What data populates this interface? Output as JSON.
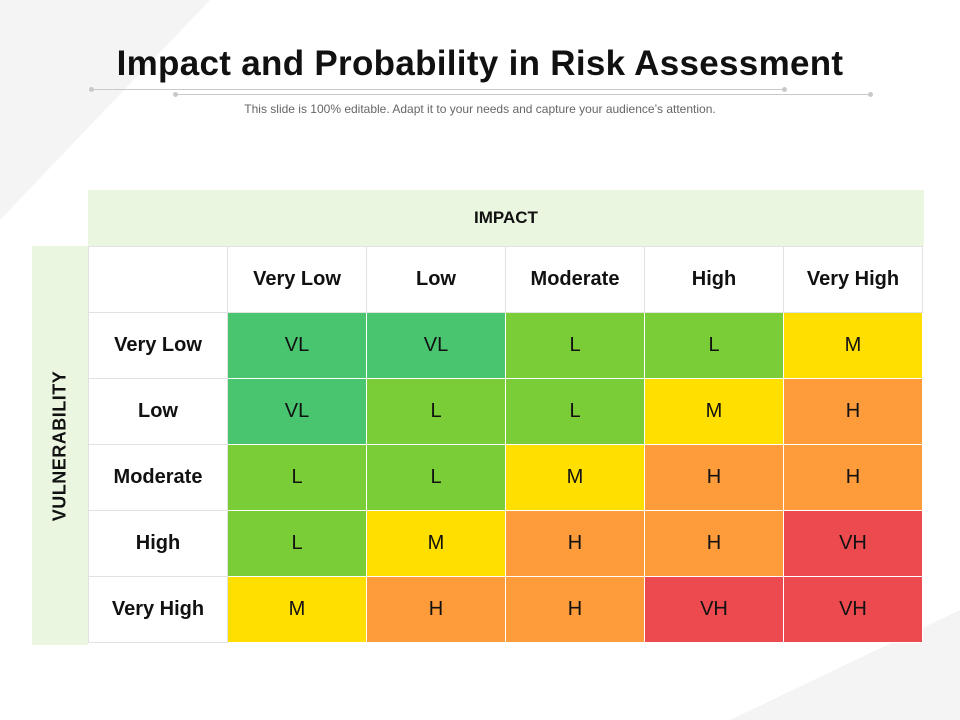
{
  "slide": {
    "title": "Impact and Probability in Risk Assessment",
    "subtitle": "This slide is 100% editable. Adapt it to your needs and capture your audience’s attention."
  },
  "matrix": {
    "impact_label": "IMPACT",
    "vulnerability_label": "VULNERABILITY",
    "columns": [
      "Very Low",
      "Low",
      "Moderate",
      "High",
      "Very High"
    ],
    "rows": [
      {
        "label": "Very Low",
        "cells": [
          "VL",
          "VL",
          "L",
          "L",
          "M"
        ]
      },
      {
        "label": "Low",
        "cells": [
          "VL",
          "L",
          "L",
          "M",
          "H"
        ]
      },
      {
        "label": "Moderate",
        "cells": [
          "L",
          "L",
          "M",
          "H",
          "H"
        ]
      },
      {
        "label": "High",
        "cells": [
          "L",
          "M",
          "H",
          "H",
          "VH"
        ]
      },
      {
        "label": "Very High",
        "cells": [
          "M",
          "H",
          "H",
          "VH",
          "VH"
        ]
      }
    ],
    "level_colors": {
      "VL": "#49c46f",
      "L": "#7acd36",
      "M": "#fedf00",
      "H": "#fe9b3a",
      "VH": "#ec4a4f"
    }
  }
}
